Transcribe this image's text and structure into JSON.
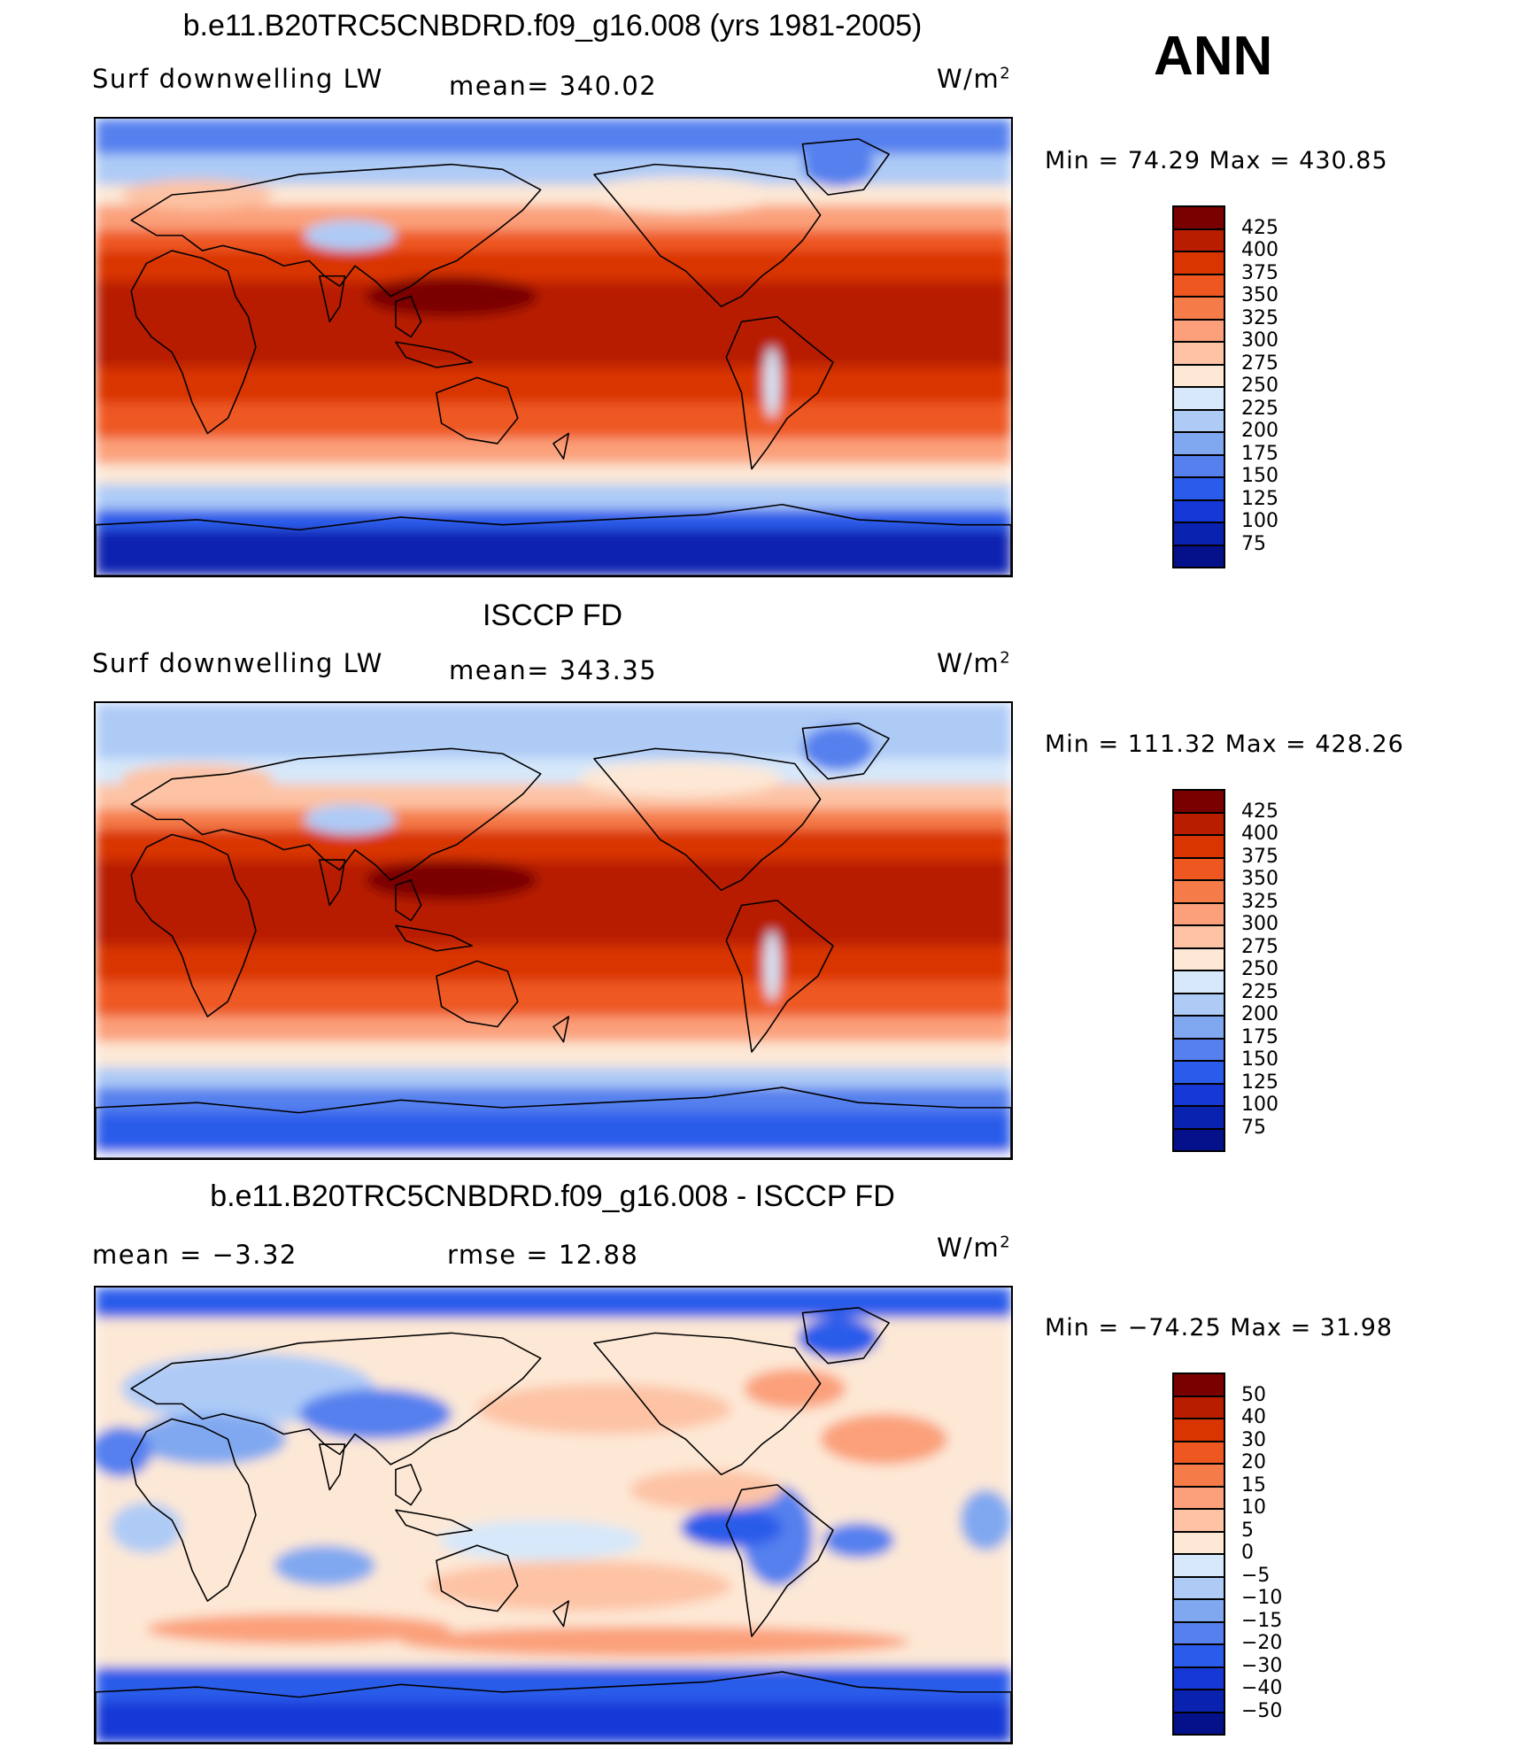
{
  "season": "ANN",
  "panels": [
    {
      "title": "b.e11.B20TRC5CNBDRD.f09_g16.008 (yrs 1981-2005)",
      "subtitle_left": "Surf  downwelling  LW",
      "subtitle_mid": "mean=  340.02",
      "units": "W/m",
      "units_sup": "2",
      "minmax": "Min  =    74.29  Max  =  430.85",
      "map_kind": "model",
      "labelbar": {
        "colors": [
          "#7a0000",
          "#b81d00",
          "#d93500",
          "#ee5820",
          "#f57c48",
          "#fba07a",
          "#fdc3a4",
          "#fde8d6",
          "#d6e8fa",
          "#aecbf6",
          "#80a8f0",
          "#5580ee",
          "#2b5bea",
          "#1638d6",
          "#0a22b0",
          "#04118a"
        ],
        "labels": [
          "425",
          "400",
          "375",
          "350",
          "325",
          "300",
          "275",
          "250",
          "225",
          "200",
          "175",
          "150",
          "125",
          "100",
          "75"
        ]
      }
    },
    {
      "title": "ISCCP FD",
      "subtitle_left": "Surf  downwelling  LW",
      "subtitle_mid": "mean=  343.35",
      "units": "W/m",
      "units_sup": "2",
      "minmax": "Min  =  111.32  Max  =  428.26",
      "map_kind": "obs",
      "labelbar": {
        "colors": [
          "#7a0000",
          "#b81d00",
          "#d93500",
          "#ee5820",
          "#f57c48",
          "#fba07a",
          "#fdc3a4",
          "#fde8d6",
          "#d6e8fa",
          "#aecbf6",
          "#80a8f0",
          "#5580ee",
          "#2b5bea",
          "#1638d6",
          "#0a22b0",
          "#04118a"
        ],
        "labels": [
          "425",
          "400",
          "375",
          "350",
          "325",
          "300",
          "275",
          "250",
          "225",
          "200",
          "175",
          "150",
          "125",
          "100",
          "75"
        ]
      }
    },
    {
      "title": "b.e11.B20TRC5CNBDRD.f09_g16.008 - ISCCP FD",
      "subtitle_left": "mean  =    −3.32",
      "subtitle_mid": "rmse  =    12.88",
      "units": "W/m",
      "units_sup": "2",
      "minmax": "Min  =  −74.25  Max  =    31.98",
      "map_kind": "diff",
      "labelbar": {
        "colors": [
          "#7a0000",
          "#b81d00",
          "#d93500",
          "#ee5820",
          "#f57c48",
          "#fba07a",
          "#fdc3a4",
          "#fde8d6",
          "#d6e8fa",
          "#aecbf6",
          "#80a8f0",
          "#5580ee",
          "#2b5bea",
          "#1638d6",
          "#0a22b0",
          "#04118a"
        ],
        "labels": [
          "50",
          "40",
          "30",
          "20",
          "15",
          "10",
          "5",
          "0",
          "−5",
          "−10",
          "−15",
          "−20",
          "−30",
          "−40",
          "−50"
        ]
      }
    }
  ]
}
